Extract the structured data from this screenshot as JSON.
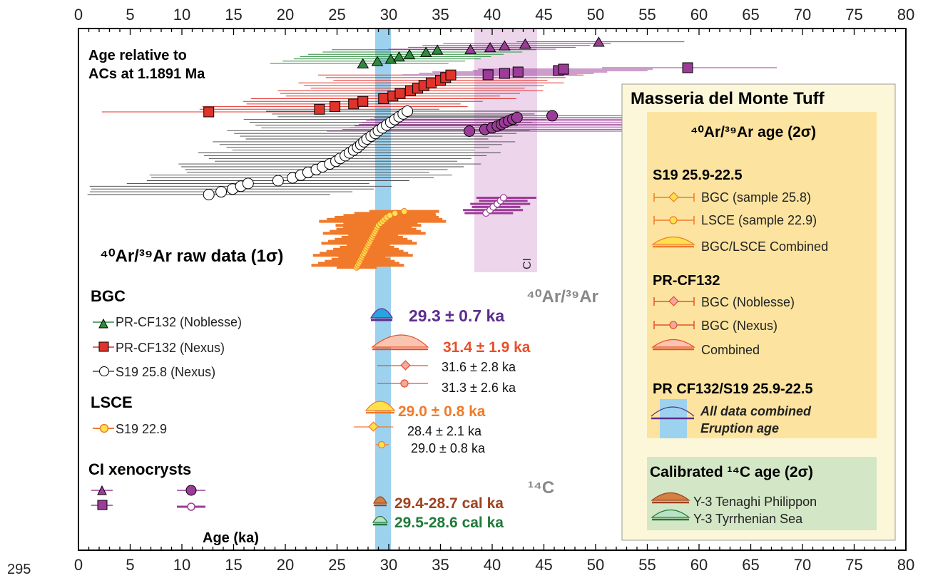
{
  "line_number": "295",
  "chart_data": {
    "type": "scatter",
    "xlabel": "Age (ka)",
    "xlim": [
      0,
      80
    ],
    "x_ticks": [
      "0",
      "5",
      "10",
      "15",
      "20",
      "25",
      "30",
      "35",
      "40",
      "45",
      "50",
      "55",
      "60",
      "65",
      "70",
      "75",
      "80"
    ],
    "grid": false,
    "colors": {
      "bgc_noblesse": "#2e8b3e",
      "bgc_nexus": "#e0332b",
      "ci": "#9b3c98",
      "lsce": "#f07a2a",
      "combined_all": "#5b2d8e",
      "c14_tenaghi": "#a0421e",
      "c14_tyrrhenian": "#1f7a3a",
      "blue_band": "#9dd2ee",
      "ci_band": "#edd5ec",
      "legend_panel": "#fdf7d9",
      "legend_yellow": "#fce4a0",
      "legend_green": "#d3e6c6"
    },
    "annotations": {
      "ages_relative": [
        "Age relative to",
        "ACs at 1.1891 Ma"
      ],
      "raw_data_label": "⁴⁰Ar/³⁹Ar raw data (1σ)",
      "ci_label": "CI",
      "ar_ar_label": "⁴⁰Ar/³⁹Ar",
      "c14_label": "¹⁴C"
    },
    "legend_left": {
      "bgc_title": "BGC",
      "bgc_items": [
        "PR-CF132 (Noblesse)",
        "PR-CF132 (Nexus)",
        "S19 25.8 (Nexus)"
      ],
      "lsce_title": "LSCE",
      "lsce_items": [
        "S19 22.9"
      ],
      "ci_title": "CI xenocrysts"
    },
    "results": [
      {
        "label": "29.3 ± 0.7 ka",
        "value": 29.3,
        "err": 0.7,
        "color": "#5b2d8e"
      },
      {
        "label": "31.4 ± 1.9 ka",
        "value": 31.4,
        "err": 1.9,
        "color": "#e8502a"
      },
      {
        "label": "31.6 ± 2.8 ka",
        "value": 31.6,
        "err": 2.8,
        "color": "#111111"
      },
      {
        "label": "31.3 ± 2.6 ka",
        "value": 31.3,
        "err": 2.6,
        "color": "#111111"
      },
      {
        "label": "29.0 ± 0.8 ka",
        "value": 29.0,
        "err": 0.8,
        "color": "#f07a2a"
      },
      {
        "label": "28.4 ± 2.1 ka",
        "value": 28.4,
        "err": 2.1,
        "color": "#111111"
      },
      {
        "label": "29.0 ± 0.8 ka",
        "value": 29.0,
        "err": 0.8,
        "color": "#111111"
      },
      {
        "label": "29.4-28.7 cal ka",
        "value": 29.05,
        "err": 0.35,
        "color": "#a0421e"
      },
      {
        "label": "29.5-28.6 cal ka",
        "value": 29.05,
        "err": 0.45,
        "color": "#1f7a3a"
      }
    ],
    "legend_right": {
      "title": "Masseria del Monte Tuff",
      "ar_title": "⁴⁰Ar/³⁹Ar age (2σ)",
      "s19_title": "S19 25.9-22.5",
      "s19_items": [
        "BGC (sample 25.8)",
        "LSCE (sample 22.9)",
        "BGC/LSCE Combined"
      ],
      "pr_title": "PR-CF132",
      "pr_items": [
        "BGC (Noblesse)",
        "BGC (Nexus)",
        "Combined"
      ],
      "all_title": "PR CF132/S19 25.9-22.5",
      "all_items": [
        "All data combined",
        "Eruption age"
      ],
      "c14_title": "Calibrated ¹⁴C age  (2σ)",
      "c14_items": [
        "Y-3 Tenaghi Philippon",
        "Y-3 Tyrrhenian Sea"
      ]
    },
    "series": [
      {
        "name": "PR-CF132 (Noblesse)",
        "marker": "triangle",
        "values": [
          27.5,
          28.9,
          30.2,
          31.0,
          32.0,
          33.6,
          34.7
        ]
      },
      {
        "name": "PR-CF132 (Nexus)",
        "marker": "square",
        "values": [
          12.6,
          23.3,
          24.8,
          26.6,
          27.5,
          29.5,
          30.4,
          31.1,
          32.1,
          32.8,
          33.4,
          34.1,
          35.0,
          35.5,
          36.0
        ]
      },
      {
        "name": "S19 25.8 (Nexus)",
        "marker": "circle",
        "values": [
          12.6,
          13.8,
          14.9,
          15.7,
          16.4,
          19.3,
          20.7,
          21.5,
          22.2,
          23.0,
          23.6,
          24.3,
          24.9,
          25.3,
          25.8,
          26.2,
          26.6,
          27.0,
          27.3,
          27.6,
          27.9,
          28.3,
          28.7,
          29.0,
          29.4,
          29.8,
          30.2,
          30.6,
          31.0,
          31.4,
          31.8
        ]
      },
      {
        "name": "CI (triangle)",
        "marker": "triangle",
        "values": [
          37.9,
          39.8,
          41.2,
          43.2,
          50.3
        ]
      },
      {
        "name": "CI (square)",
        "marker": "square",
        "values": [
          39.6,
          41.2,
          42.5,
          46.4,
          46.9,
          58.9
        ]
      },
      {
        "name": "CI (circle)",
        "marker": "circle",
        "values": [
          37.8,
          39.3,
          40.0,
          40.5,
          40.9,
          41.2,
          41.6,
          42.0,
          42.4,
          45.8
        ]
      },
      {
        "name": "S19 22.9",
        "marker": "circle",
        "values": [
          26.9,
          27.0,
          27.1,
          27.2,
          27.3,
          27.4,
          27.5,
          27.6,
          27.7,
          27.8,
          27.9,
          28.0,
          28.1,
          28.2,
          28.3,
          28.4,
          28.5,
          28.6,
          28.7,
          28.8,
          28.9,
          29.0,
          29.2,
          29.4,
          29.6,
          29.8,
          30.1,
          30.6,
          31.5
        ]
      },
      {
        "name": "CI xenocrysts (LSCE)",
        "marker": "circle",
        "values": [
          39.4,
          39.8,
          40.1,
          40.5,
          40.8,
          41.1
        ]
      }
    ]
  }
}
